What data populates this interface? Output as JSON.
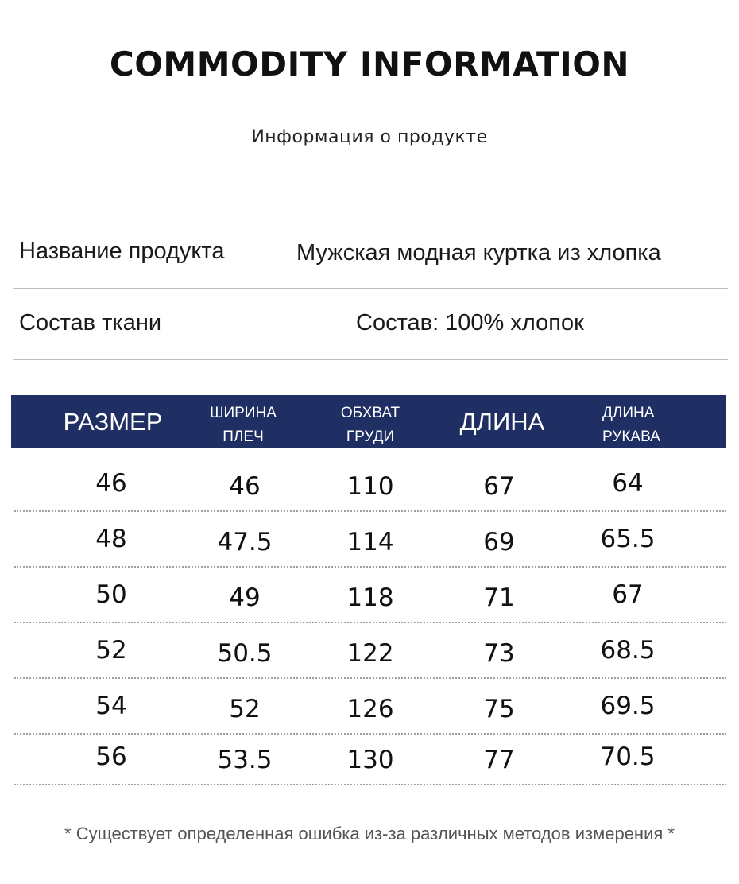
{
  "title": "COMMODITY INFORMATION",
  "subtitle": "Информация о продукте",
  "info": {
    "name_label": "Название продукта",
    "name_value": "Мужская модная куртка из хлопка",
    "fabric_label": "Состав ткани",
    "fabric_value": "Состав: 100% хлопок"
  },
  "size_table": {
    "header_color": "#1f2f63",
    "headers": {
      "size": "РАЗМЕР",
      "shoulder_1": "ШИРИНА",
      "shoulder_2": "ПЛЕЧ",
      "chest_1": "ОБХВАТ",
      "chest_2": "ГРУДИ",
      "length": "ДЛИНА",
      "sleeve_1": "ДЛИНА",
      "sleeve_2": "РУКАВА"
    },
    "rows": [
      [
        "46",
        "46",
        "110",
        "67",
        "64"
      ],
      [
        "48",
        "47.5",
        "114",
        "69",
        "65.5"
      ],
      [
        "50",
        "49",
        "118",
        "71",
        "67"
      ],
      [
        "52",
        "50.5",
        "122",
        "73",
        "68.5"
      ],
      [
        "54",
        "52",
        "126",
        "75",
        "69.5"
      ],
      [
        "56",
        "53.5",
        "130",
        "77",
        "70.5"
      ]
    ]
  },
  "footnote": "* Существует определенная ошибка из-за различных методов измерения *"
}
